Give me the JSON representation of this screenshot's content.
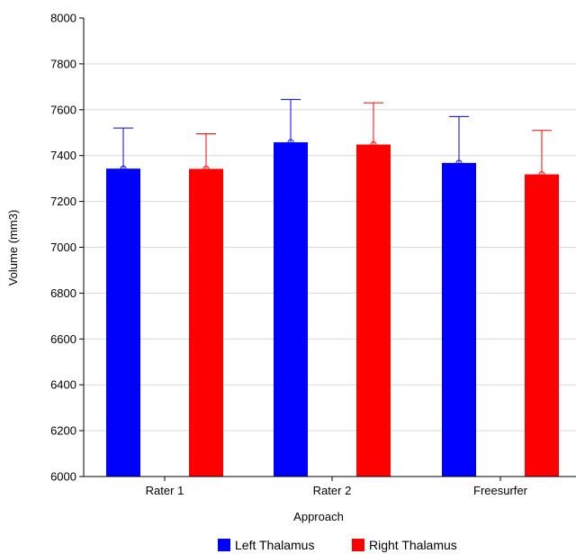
{
  "chart_data": {
    "type": "bar",
    "categories": [
      "Rater 1",
      "Rater 2",
      "Freesurfer"
    ],
    "series": [
      {
        "name": "Left Thalamus",
        "values": [
          7343,
          7458,
          7368
        ],
        "error_upper": [
          7520,
          7645,
          7570
        ],
        "color": "#0000ff"
      },
      {
        "name": "Right Thalamus",
        "values": [
          7342,
          7448,
          7318
        ],
        "error_upper": [
          7495,
          7630,
          7510
        ],
        "color": "#ff0000"
      }
    ],
    "xlabel": "Approach",
    "ylabel": "Volume (mm3)",
    "ylim": [
      6000,
      8000
    ],
    "yticks": [
      6000,
      6200,
      6400,
      6600,
      6800,
      7000,
      7200,
      7400,
      7600,
      7800,
      8000
    ],
    "grid": true,
    "legend_position": "bottom"
  }
}
